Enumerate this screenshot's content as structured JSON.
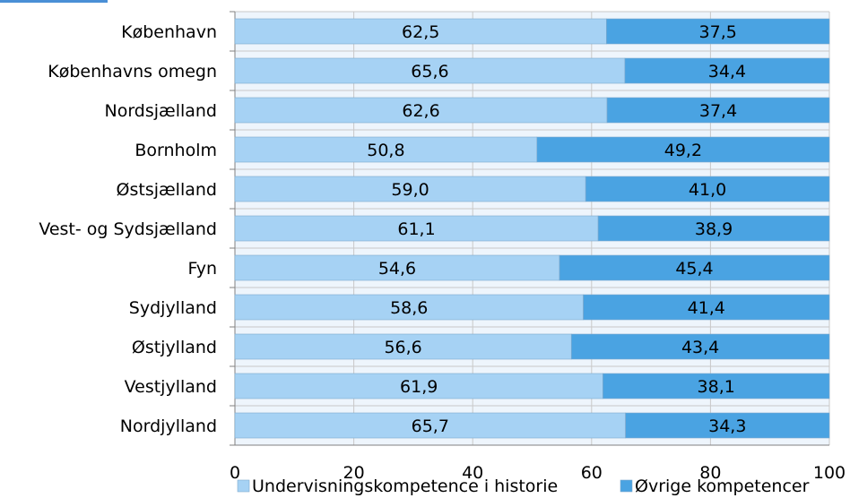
{
  "chart_data": {
    "type": "bar",
    "orientation": "horizontal",
    "stacked": true,
    "categories": [
      "København",
      "Københavns omegn",
      "Nordsjælland",
      "Bornholm",
      "Østsjælland",
      "Vest- og Sydsjælland",
      "Fyn",
      "Sydjylland",
      "Østjylland",
      "Vestjylland",
      "Nordjylland"
    ],
    "series": [
      {
        "name": "Undervisningskompetence i historie",
        "color": "#a6d2f4",
        "values": [
          62.5,
          65.6,
          62.6,
          50.8,
          59.0,
          61.1,
          54.6,
          58.6,
          56.6,
          61.9,
          65.7
        ],
        "labels": [
          "62,5",
          "65,6",
          "62,6",
          "50,8",
          "59,0",
          "61,1",
          "54,6",
          "58,6",
          "56,6",
          "61,9",
          "65,7"
        ]
      },
      {
        "name": "Øvrige kompetencer",
        "color": "#4aa3e2",
        "values": [
          37.5,
          34.4,
          37.4,
          49.2,
          41.0,
          38.9,
          45.4,
          41.4,
          43.4,
          38.1,
          34.3
        ],
        "labels": [
          "37,5",
          "34,4",
          "37,4",
          "49,2",
          "41,0",
          "38,9",
          "45,4",
          "41,4",
          "43,4",
          "38,1",
          "34,3"
        ]
      }
    ],
    "xlim": [
      0,
      100
    ],
    "xticks": [
      0,
      20,
      40,
      60,
      80,
      100
    ],
    "xtick_labels": [
      "0",
      "20",
      "40",
      "60",
      "80",
      "100"
    ],
    "grid": true,
    "legend_position": "bottom",
    "colors": {
      "plot_background": "#eef5fc",
      "gridline": "#c8c8c8",
      "axis": "#808080",
      "title_fragment": "#4a8fd6"
    }
  }
}
